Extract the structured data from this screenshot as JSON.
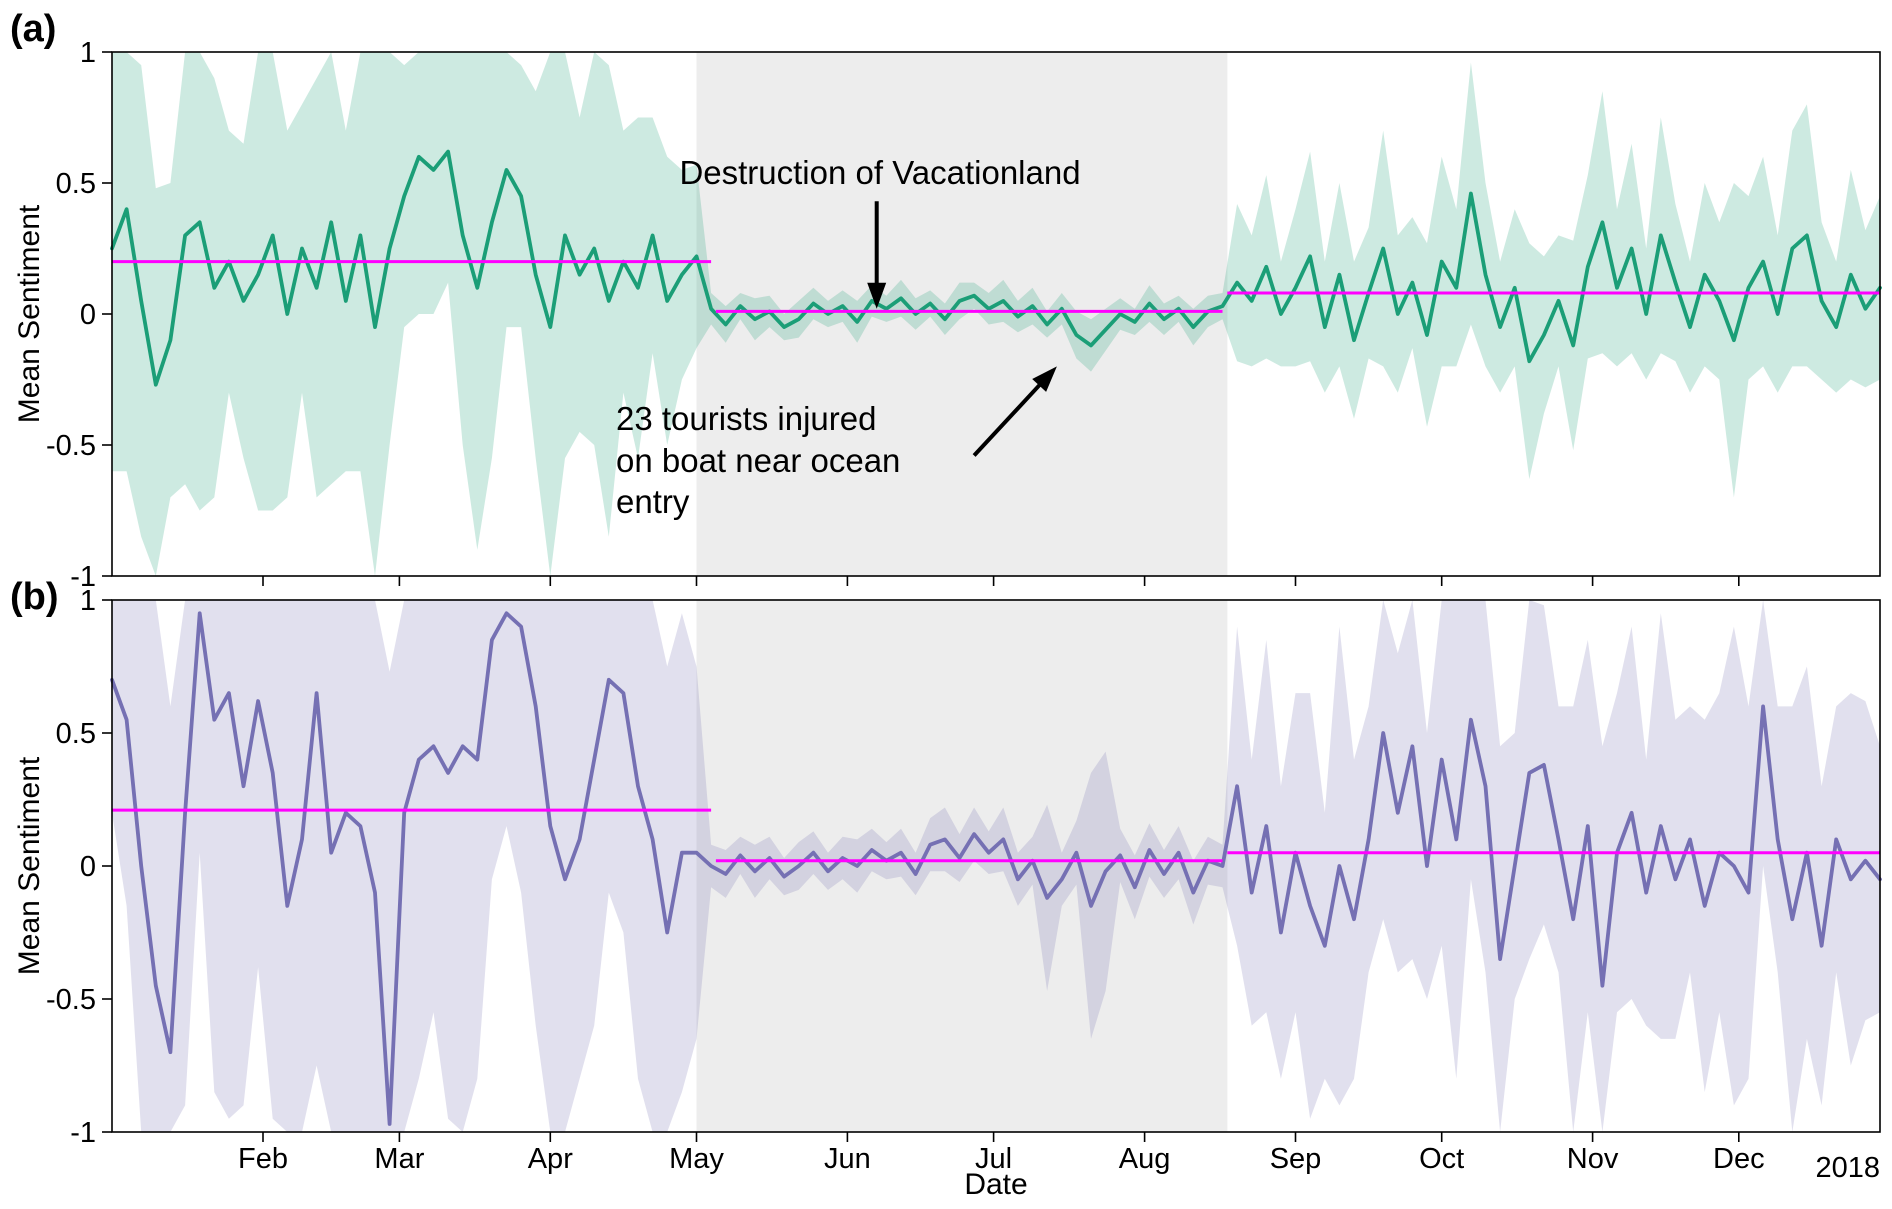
{
  "figure": {
    "panel_a_tag": "(a)",
    "panel_b_tag": "(b)",
    "ylabel": "Mean Sentiment",
    "xlabel": "Date",
    "year_label": "2018"
  },
  "annotations": {
    "vacationland": {
      "text": "Destruction of Vacationland",
      "arrow": {
        "from_day": 157,
        "from_val": 0.43,
        "to_day": 157,
        "to_val": 0.02
      }
    },
    "tourists": {
      "text": "23 tourists injured\non boat near ocean\nentry",
      "arrow": {
        "from_day": 177,
        "from_val": -0.54,
        "to_day": 194,
        "to_val": -0.2
      }
    }
  },
  "chart_data": [
    {
      "type": "line",
      "panel": "a",
      "title": "",
      "ylabel": "Mean Sentiment",
      "ylim": [
        -1,
        1
      ],
      "yticks": [
        -1,
        -0.5,
        0,
        0.5,
        1
      ],
      "ytick_labels": [
        "-1",
        "-0.5",
        "0",
        "0.5",
        "1"
      ],
      "x_unit": "day_of_year_2018",
      "x_start_day": 0,
      "x_step_days": 3,
      "x_end_day": 363,
      "xticks": [
        {
          "day": 31,
          "label": "Feb"
        },
        {
          "day": 59,
          "label": "Mar"
        },
        {
          "day": 90,
          "label": "Apr"
        },
        {
          "day": 120,
          "label": "May"
        },
        {
          "day": 151,
          "label": "Jun"
        },
        {
          "day": 181,
          "label": "Jul"
        },
        {
          "day": 212,
          "label": "Aug"
        },
        {
          "day": 243,
          "label": "Sep"
        },
        {
          "day": 273,
          "label": "Oct"
        },
        {
          "day": 304,
          "label": "Nov"
        },
        {
          "day": 334,
          "label": "Dec"
        }
      ],
      "line_color": "#1b9e77",
      "band_color": "rgba(27,158,119,0.22)",
      "mean_color": "#ff00ff",
      "shade_region": {
        "start_day": 120,
        "end_day": 229,
        "color": "#ededed"
      },
      "mean_segments": [
        {
          "start_day": 0,
          "end_day": 123,
          "value": 0.2
        },
        {
          "start_day": 124,
          "end_day": 228,
          "value": 0.01
        },
        {
          "start_day": 229,
          "end_day": 363,
          "value": 0.08
        }
      ],
      "values": [
        0.25,
        0.4,
        0.05,
        -0.27,
        -0.1,
        0.3,
        0.35,
        0.1,
        0.2,
        0.05,
        0.15,
        0.3,
        0.0,
        0.25,
        0.1,
        0.35,
        0.05,
        0.3,
        -0.05,
        0.25,
        0.45,
        0.6,
        0.55,
        0.62,
        0.3,
        0.1,
        0.35,
        0.55,
        0.45,
        0.15,
        -0.05,
        0.3,
        0.15,
        0.25,
        0.05,
        0.2,
        0.1,
        0.3,
        0.05,
        0.15,
        0.22,
        0.02,
        -0.04,
        0.03,
        -0.02,
        0.01,
        -0.05,
        -0.02,
        0.04,
        0.0,
        0.03,
        -0.03,
        0.05,
        0.02,
        0.06,
        0.0,
        0.04,
        -0.02,
        0.05,
        0.07,
        0.02,
        0.05,
        -0.01,
        0.03,
        -0.04,
        0.02,
        -0.08,
        -0.12,
        -0.06,
        0.0,
        -0.03,
        0.04,
        -0.02,
        0.02,
        -0.05,
        0.01,
        0.03,
        0.12,
        0.05,
        0.18,
        0.0,
        0.1,
        0.22,
        -0.05,
        0.15,
        -0.1,
        0.08,
        0.25,
        0.0,
        0.12,
        -0.08,
        0.2,
        0.1,
        0.46,
        0.15,
        -0.05,
        0.1,
        -0.18,
        -0.08,
        0.05,
        -0.12,
        0.18,
        0.35,
        0.1,
        0.25,
        0.0,
        0.3,
        0.12,
        -0.05,
        0.15,
        0.05,
        -0.1,
        0.1,
        0.2,
        0.0,
        0.25,
        0.3,
        0.05,
        -0.05,
        0.15,
        0.02,
        0.1
      ],
      "band_halfwidth": [
        0.85,
        1.0,
        0.9,
        0.75,
        0.6,
        0.95,
        1.1,
        0.8,
        0.5,
        0.6,
        0.9,
        1.05,
        0.7,
        0.55,
        0.8,
        1.0,
        0.65,
        0.9,
        1.1,
        0.75,
        0.5,
        0.6,
        0.55,
        0.5,
        0.8,
        1.0,
        0.9,
        0.6,
        0.5,
        0.7,
        1.05,
        0.85,
        0.6,
        0.75,
        0.9,
        0.5,
        0.65,
        0.45,
        0.55,
        0.4,
        0.35,
        0.06,
        0.07,
        0.05,
        0.08,
        0.06,
        0.05,
        0.07,
        0.06,
        0.05,
        0.06,
        0.08,
        0.06,
        0.05,
        0.07,
        0.06,
        0.05,
        0.06,
        0.07,
        0.05,
        0.06,
        0.08,
        0.06,
        0.07,
        0.05,
        0.06,
        0.09,
        0.1,
        0.08,
        0.06,
        0.05,
        0.07,
        0.06,
        0.05,
        0.07,
        0.06,
        0.05,
        0.3,
        0.25,
        0.35,
        0.2,
        0.3,
        0.4,
        0.25,
        0.35,
        0.3,
        0.25,
        0.45,
        0.3,
        0.25,
        0.35,
        0.4,
        0.3,
        0.5,
        0.35,
        0.25,
        0.3,
        0.45,
        0.3,
        0.25,
        0.4,
        0.35,
        0.5,
        0.3,
        0.4,
        0.25,
        0.45,
        0.3,
        0.25,
        0.35,
        0.3,
        0.6,
        0.35,
        0.4,
        0.3,
        0.45,
        0.5,
        0.3,
        0.25,
        0.4,
        0.3,
        0.35
      ]
    },
    {
      "type": "line",
      "panel": "b",
      "title": "",
      "ylabel": "Mean Sentiment",
      "ylim": [
        -1,
        1
      ],
      "yticks": [
        -1,
        -0.5,
        0,
        0.5,
        1
      ],
      "ytick_labels": [
        "-1",
        "-0.5",
        "0",
        "0.5",
        "1"
      ],
      "x_unit": "day_of_year_2018",
      "x_start_day": 0,
      "x_step_days": 3,
      "x_end_day": 363,
      "xticks": [
        {
          "day": 31,
          "label": "Feb"
        },
        {
          "day": 59,
          "label": "Mar"
        },
        {
          "day": 90,
          "label": "Apr"
        },
        {
          "day": 120,
          "label": "May"
        },
        {
          "day": 151,
          "label": "Jun"
        },
        {
          "day": 181,
          "label": "Jul"
        },
        {
          "day": 212,
          "label": "Aug"
        },
        {
          "day": 243,
          "label": "Sep"
        },
        {
          "day": 273,
          "label": "Oct"
        },
        {
          "day": 304,
          "label": "Nov"
        },
        {
          "day": 334,
          "label": "Dec"
        }
      ],
      "line_color": "#7570b3",
      "band_color": "rgba(117,112,179,0.22)",
      "mean_color": "#ff00ff",
      "shade_region": {
        "start_day": 120,
        "end_day": 229,
        "color": "#ededed"
      },
      "mean_segments": [
        {
          "start_day": 0,
          "end_day": 123,
          "value": 0.21
        },
        {
          "start_day": 124,
          "end_day": 228,
          "value": 0.02
        },
        {
          "start_day": 229,
          "end_day": 363,
          "value": 0.05
        }
      ],
      "values": [
        0.7,
        0.55,
        0.0,
        -0.45,
        -0.7,
        0.2,
        0.95,
        0.55,
        0.65,
        0.3,
        0.62,
        0.35,
        -0.15,
        0.1,
        0.65,
        0.05,
        0.2,
        0.15,
        -0.1,
        -0.97,
        0.2,
        0.4,
        0.45,
        0.35,
        0.45,
        0.4,
        0.85,
        0.95,
        0.9,
        0.6,
        0.15,
        -0.05,
        0.1,
        0.4,
        0.7,
        0.65,
        0.3,
        0.1,
        -0.25,
        0.05,
        0.05,
        0.0,
        -0.03,
        0.04,
        -0.02,
        0.03,
        -0.04,
        0.0,
        0.05,
        -0.02,
        0.03,
        0.0,
        0.06,
        0.02,
        0.05,
        -0.03,
        0.08,
        0.1,
        0.03,
        0.12,
        0.05,
        0.1,
        -0.05,
        0.02,
        -0.12,
        -0.05,
        0.05,
        -0.15,
        -0.02,
        0.04,
        -0.08,
        0.06,
        -0.03,
        0.05,
        -0.1,
        0.02,
        0.0,
        0.3,
        -0.1,
        0.15,
        -0.25,
        0.05,
        -0.15,
        -0.3,
        0.0,
        -0.2,
        0.1,
        0.5,
        0.2,
        0.45,
        0.0,
        0.4,
        0.1,
        0.55,
        0.3,
        -0.35,
        0.0,
        0.35,
        0.38,
        0.1,
        -0.2,
        0.15,
        -0.45,
        0.05,
        0.2,
        -0.1,
        0.15,
        -0.05,
        0.1,
        -0.15,
        0.05,
        0.0,
        -0.1,
        0.6,
        0.1,
        -0.2,
        0.05,
        -0.3,
        0.1,
        -0.05,
        0.02,
        -0.05
      ],
      "band_halfwidth": [
        0.5,
        0.7,
        1.2,
        1.5,
        1.3,
        1.1,
        0.9,
        1.4,
        1.6,
        1.2,
        1.0,
        1.3,
        1.5,
        1.2,
        1.4,
        1.1,
        1.6,
        1.3,
        1.5,
        1.7,
        1.4,
        1.2,
        1.0,
        1.3,
        1.5,
        1.2,
        0.9,
        0.8,
        1.0,
        1.2,
        1.4,
        1.1,
        0.9,
        1.0,
        0.8,
        0.9,
        1.1,
        1.3,
        1.0,
        0.9,
        0.7,
        0.08,
        0.09,
        0.07,
        0.1,
        0.08,
        0.07,
        0.09,
        0.08,
        0.07,
        0.08,
        0.1,
        0.08,
        0.07,
        0.09,
        0.08,
        0.1,
        0.12,
        0.09,
        0.1,
        0.08,
        0.12,
        0.1,
        0.09,
        0.35,
        0.1,
        0.12,
        0.5,
        0.45,
        0.1,
        0.12,
        0.1,
        0.09,
        0.1,
        0.12,
        0.09,
        0.08,
        0.6,
        0.5,
        0.7,
        0.55,
        0.6,
        0.8,
        0.5,
        0.9,
        0.6,
        0.5,
        0.7,
        0.6,
        0.8,
        0.5,
        0.7,
        0.9,
        0.6,
        0.7,
        0.8,
        0.5,
        0.7,
        0.6,
        0.5,
        0.8,
        0.7,
        0.9,
        0.6,
        0.7,
        0.5,
        0.8,
        0.6,
        0.5,
        0.7,
        0.6,
        0.9,
        0.7,
        0.6,
        0.5,
        0.8,
        0.7,
        0.6,
        0.5,
        0.7,
        0.6,
        0.5
      ]
    }
  ]
}
